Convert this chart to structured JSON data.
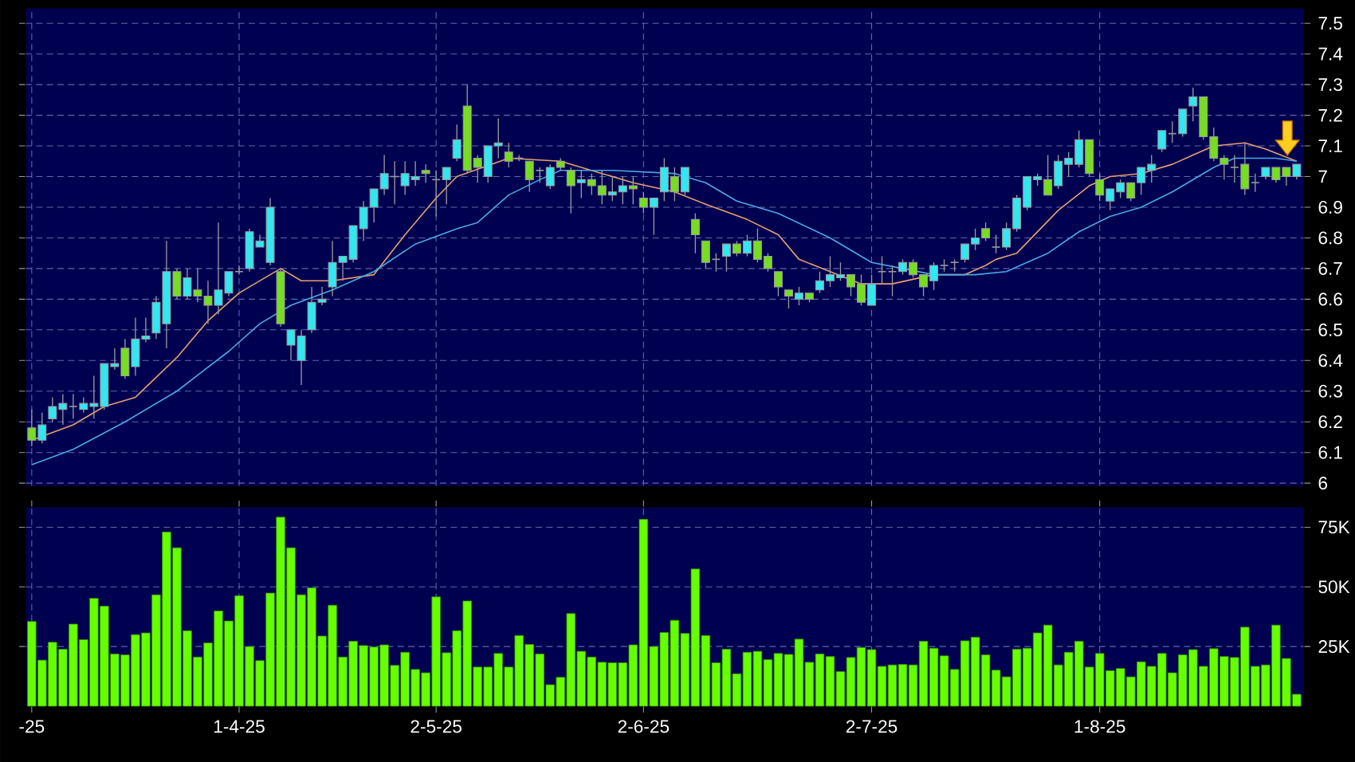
{
  "chart_data": [
    {
      "type": "candlestick",
      "ohlc": [
        [
          6.18,
          6.24,
          6.12,
          6.14
        ],
        [
          6.14,
          6.23,
          6.13,
          6.19
        ],
        [
          6.21,
          6.28,
          6.2,
          6.25
        ],
        [
          6.24,
          6.29,
          6.19,
          6.26
        ],
        [
          6.25,
          6.29,
          6.21,
          6.25
        ],
        [
          6.24,
          6.28,
          6.23,
          6.26
        ],
        [
          6.25,
          6.35,
          6.21,
          6.26
        ],
        [
          6.25,
          6.39,
          6.24,
          6.39
        ],
        [
          6.38,
          6.44,
          6.37,
          6.39
        ],
        [
          6.44,
          6.47,
          6.34,
          6.35
        ],
        [
          6.38,
          6.54,
          6.35,
          6.47
        ],
        [
          6.47,
          6.54,
          6.46,
          6.48
        ],
        [
          6.49,
          6.61,
          6.47,
          6.59
        ],
        [
          6.52,
          6.79,
          6.44,
          6.69
        ],
        [
          6.69,
          6.7,
          6.6,
          6.61
        ],
        [
          6.61,
          6.7,
          6.6,
          6.67
        ],
        [
          6.63,
          6.7,
          6.59,
          6.61
        ],
        [
          6.61,
          6.66,
          6.52,
          6.58
        ],
        [
          6.58,
          6.85,
          6.55,
          6.63
        ],
        [
          6.62,
          6.69,
          6.61,
          6.69
        ],
        [
          6.69,
          6.71,
          6.68,
          6.69
        ],
        [
          6.7,
          6.83,
          6.69,
          6.82
        ],
        [
          6.77,
          6.81,
          6.77,
          6.79
        ],
        [
          6.72,
          6.93,
          6.71,
          6.9
        ],
        [
          6.69,
          6.7,
          6.51,
          6.52
        ],
        [
          6.45,
          6.5,
          6.4,
          6.5
        ],
        [
          6.4,
          6.5,
          6.32,
          6.48
        ],
        [
          6.5,
          6.64,
          6.49,
          6.59
        ],
        [
          6.59,
          6.64,
          6.58,
          6.6
        ],
        [
          6.64,
          6.79,
          6.61,
          6.72
        ],
        [
          6.72,
          6.74,
          6.66,
          6.74
        ],
        [
          6.73,
          6.84,
          6.72,
          6.84
        ],
        [
          6.83,
          6.92,
          6.79,
          6.9
        ],
        [
          6.9,
          6.96,
          6.85,
          6.96
        ],
        [
          6.96,
          7.07,
          6.94,
          7.01
        ],
        [
          7.0,
          7.05,
          6.91,
          7.0
        ],
        [
          6.97,
          7.05,
          6.94,
          7.01
        ],
        [
          6.99,
          7.05,
          6.97,
          7.0
        ],
        [
          7.02,
          7.04,
          6.98,
          7.01
        ],
        [
          6.99,
          7.02,
          6.87,
          6.99
        ],
        [
          6.99,
          7.03,
          6.91,
          7.03
        ],
        [
          7.06,
          7.17,
          7.05,
          7.12
        ],
        [
          7.23,
          7.3,
          7.01,
          7.02
        ],
        [
          7.06,
          7.07,
          6.98,
          7.03
        ],
        [
          7.0,
          7.1,
          6.98,
          7.1
        ],
        [
          7.1,
          7.19,
          7.06,
          7.11
        ],
        [
          7.08,
          7.11,
          7.03,
          7.05
        ],
        [
          7.06,
          7.07,
          7.05,
          7.06
        ],
        [
          7.05,
          7.05,
          6.95,
          6.99
        ],
        [
          7.02,
          7.03,
          6.98,
          7.02
        ],
        [
          6.97,
          7.04,
          6.96,
          7.03
        ],
        [
          7.05,
          7.06,
          7.02,
          7.03
        ],
        [
          7.02,
          7.03,
          6.88,
          6.97
        ],
        [
          6.98,
          7.02,
          6.93,
          6.99
        ],
        [
          6.99,
          7.01,
          6.94,
          6.97
        ],
        [
          6.97,
          7.02,
          6.91,
          6.94
        ],
        [
          6.94,
          7.0,
          6.92,
          6.95
        ],
        [
          6.95,
          7.0,
          6.91,
          6.97
        ],
        [
          6.97,
          7.0,
          6.91,
          6.96
        ],
        [
          6.93,
          6.95,
          6.88,
          6.9
        ],
        [
          6.9,
          6.93,
          6.81,
          6.93
        ],
        [
          6.95,
          7.06,
          6.92,
          7.03
        ],
        [
          7.0,
          7.03,
          6.92,
          6.95
        ],
        [
          6.95,
          7.03,
          6.94,
          7.03
        ],
        [
          6.86,
          6.88,
          6.75,
          6.81
        ],
        [
          6.79,
          6.79,
          6.7,
          6.72
        ],
        [
          6.73,
          6.75,
          6.69,
          6.73
        ],
        [
          6.74,
          6.78,
          6.69,
          6.78
        ],
        [
          6.78,
          6.79,
          6.74,
          6.75
        ],
        [
          6.75,
          6.81,
          6.74,
          6.79
        ],
        [
          6.79,
          6.83,
          6.72,
          6.73
        ],
        [
          6.74,
          6.75,
          6.69,
          6.7
        ],
        [
          6.69,
          6.69,
          6.61,
          6.64
        ],
        [
          6.63,
          6.63,
          6.57,
          6.61
        ],
        [
          6.6,
          6.64,
          6.58,
          6.62
        ],
        [
          6.62,
          6.62,
          6.59,
          6.6
        ],
        [
          6.63,
          6.69,
          6.62,
          6.66
        ],
        [
          6.66,
          6.74,
          6.64,
          6.68
        ],
        [
          6.67,
          6.72,
          6.66,
          6.68
        ],
        [
          6.68,
          6.68,
          6.61,
          6.64
        ],
        [
          6.65,
          6.68,
          6.58,
          6.59
        ],
        [
          6.58,
          6.68,
          6.58,
          6.65
        ],
        [
          6.69,
          6.74,
          6.65,
          6.69
        ],
        [
          6.69,
          6.71,
          6.61,
          6.69
        ],
        [
          6.69,
          6.73,
          6.68,
          6.72
        ],
        [
          6.72,
          6.73,
          6.67,
          6.68
        ],
        [
          6.68,
          6.68,
          6.61,
          6.64
        ],
        [
          6.66,
          6.72,
          6.63,
          6.71
        ],
        [
          6.71,
          6.73,
          6.69,
          6.71
        ],
        [
          6.72,
          6.73,
          6.69,
          6.72
        ],
        [
          6.73,
          6.78,
          6.72,
          6.78
        ],
        [
          6.78,
          6.83,
          6.76,
          6.8
        ],
        [
          6.83,
          6.85,
          6.79,
          6.8
        ],
        [
          6.77,
          6.81,
          6.75,
          6.77
        ],
        [
          6.77,
          6.85,
          6.76,
          6.83
        ],
        [
          6.83,
          6.94,
          6.82,
          6.93
        ],
        [
          6.9,
          7.0,
          6.89,
          7.0
        ],
        [
          6.99,
          7.01,
          6.97,
          7.0
        ],
        [
          6.99,
          7.07,
          6.94,
          6.94
        ],
        [
          6.97,
          7.07,
          6.96,
          7.05
        ],
        [
          7.04,
          7.08,
          7.0,
          7.06
        ],
        [
          7.04,
          7.15,
          7.03,
          7.12
        ],
        [
          7.12,
          7.12,
          7.0,
          7.01
        ],
        [
          6.99,
          7.01,
          6.92,
          6.94
        ],
        [
          6.92,
          6.96,
          6.89,
          6.96
        ],
        [
          6.95,
          6.99,
          6.93,
          6.98
        ],
        [
          6.98,
          6.98,
          6.92,
          6.93
        ],
        [
          6.98,
          7.03,
          6.94,
          7.03
        ],
        [
          7.02,
          7.07,
          6.98,
          7.04
        ],
        [
          7.09,
          7.15,
          7.08,
          7.15
        ],
        [
          7.14,
          7.18,
          7.11,
          7.14
        ],
        [
          7.14,
          7.22,
          7.13,
          7.22
        ],
        [
          7.23,
          7.29,
          7.18,
          7.26
        ],
        [
          7.26,
          7.26,
          7.12,
          7.13
        ],
        [
          7.13,
          7.16,
          7.05,
          7.06
        ],
        [
          7.06,
          7.07,
          6.99,
          7.04
        ],
        [
          7.03,
          7.07,
          6.98,
          7.03
        ],
        [
          7.04,
          7.11,
          6.94,
          6.96
        ],
        [
          6.98,
          7.01,
          6.95,
          6.98
        ],
        [
          7.0,
          7.03,
          6.99,
          7.03
        ],
        [
          7.03,
          7.03,
          6.98,
          6.99
        ],
        [
          7.03,
          7.03,
          6.97,
          7.0
        ],
        [
          7.0,
          7.04,
          6.99,
          7.04
        ]
      ],
      "categories": [
        null,
        null,
        null,
        null,
        null,
        null,
        null,
        null,
        null,
        null,
        null,
        null,
        null,
        null,
        null,
        null,
        null,
        null,
        null,
        null,
        null,
        null,
        null,
        null,
        null,
        null,
        null,
        null,
        null,
        null,
        null,
        null,
        null,
        null,
        null,
        null,
        null,
        null,
        null,
        null,
        null,
        null,
        null,
        null,
        null,
        null,
        null,
        null,
        null,
        null,
        null,
        null,
        null,
        null,
        null,
        null,
        null,
        null,
        null,
        null,
        null,
        null,
        null,
        null,
        null,
        null,
        null,
        null,
        null,
        null,
        null,
        null,
        null,
        null,
        null,
        null,
        null,
        null,
        null,
        null,
        null,
        null,
        null,
        null,
        null,
        null,
        null,
        null,
        null,
        null,
        null,
        null,
        null,
        null,
        null,
        null,
        null,
        null,
        null,
        null,
        null,
        null,
        null,
        null,
        null,
        null,
        null,
        null,
        null,
        null,
        null,
        null,
        null,
        null,
        null,
        null,
        null,
        null,
        null,
        null,
        null,
        null,
        null
      ],
      "colors": [
        "#77dd22",
        "#33e6f0",
        "#33e6f0",
        "#33e6f0",
        "#9a9a9a",
        "#33e6f0",
        "#33e6f0",
        "#33e6f0",
        "#33e6f0",
        "#77dd22",
        "#33e6f0",
        "#33e6f0",
        "#33e6f0",
        "#33e6f0",
        "#77dd22",
        "#33e6f0",
        "#77dd22",
        "#77dd22",
        "#33e6f0",
        "#33e6f0",
        "#9a9a9a",
        "#33e6f0",
        "#33e6f0",
        "#33e6f0",
        "#77dd22",
        "#33e6f0",
        "#33e6f0",
        "#33e6f0",
        "#33e6f0",
        "#33e6f0",
        "#33e6f0",
        "#33e6f0",
        "#33e6f0",
        "#33e6f0",
        "#33e6f0",
        "#9a9a9a",
        "#33e6f0",
        "#33e6f0",
        "#77dd22",
        "#9a9a9a",
        "#33e6f0",
        "#33e6f0",
        "#77dd22",
        "#77dd22",
        "#33e6f0",
        "#33e6f0",
        "#77dd22",
        "#9a9a9a",
        "#77dd22",
        "#9a9a9a",
        "#33e6f0",
        "#77dd22",
        "#77dd22",
        "#33e6f0",
        "#77dd22",
        "#77dd22",
        "#33e6f0",
        "#33e6f0",
        "#77dd22",
        "#77dd22",
        "#33e6f0",
        "#33e6f0",
        "#77dd22",
        "#33e6f0",
        "#77dd22",
        "#77dd22",
        "#9a9a9a",
        "#33e6f0",
        "#77dd22",
        "#33e6f0",
        "#77dd22",
        "#77dd22",
        "#77dd22",
        "#77dd22",
        "#33e6f0",
        "#77dd22",
        "#33e6f0",
        "#33e6f0",
        "#33e6f0",
        "#77dd22",
        "#77dd22",
        "#33e6f0",
        "#9a9a9a",
        "#9a9a9a",
        "#33e6f0",
        "#77dd22",
        "#77dd22",
        "#33e6f0",
        "#9a9a9a",
        "#9a9a9a",
        "#33e6f0",
        "#33e6f0",
        "#77dd22",
        "#9a9a9a",
        "#33e6f0",
        "#33e6f0",
        "#33e6f0",
        "#33e6f0",
        "#77dd22",
        "#33e6f0",
        "#33e6f0",
        "#33e6f0",
        "#77dd22",
        "#77dd22",
        "#33e6f0",
        "#33e6f0",
        "#77dd22",
        "#33e6f0",
        "#33e6f0",
        "#33e6f0",
        "#9a9a9a",
        "#33e6f0",
        "#33e6f0",
        "#77dd22",
        "#77dd22",
        "#77dd22",
        "#9a9a9a",
        "#77dd22",
        "#9a9a9a",
        "#33e6f0",
        "#77dd22",
        "#77dd22",
        "#33e6f0"
      ],
      "series": [
        {
          "type": "line",
          "color": "#e8a070",
          "values": [
            6.14,
            null,
            null,
            null,
            6.19,
            null,
            null,
            6.25,
            null,
            null,
            6.28,
            null,
            null,
            null,
            6.41,
            null,
            null,
            6.53,
            null,
            null,
            6.62,
            null,
            null,
            null,
            6.7,
            null,
            6.66,
            null,
            null,
            6.66,
            null,
            null,
            null,
            6.68,
            null,
            null,
            6.81,
            null,
            null,
            6.93,
            null,
            7.0,
            null,
            null,
            null,
            null,
            7.06,
            null,
            null,
            null,
            null,
            7.05,
            null,
            null,
            null,
            7.01,
            null,
            null,
            6.98,
            null,
            null,
            null,
            6.95,
            null,
            null,
            6.91,
            null,
            null,
            null,
            6.86,
            null,
            null,
            6.81,
            null,
            6.73,
            null,
            null,
            6.69,
            null,
            null,
            6.65,
            null,
            null,
            6.65,
            null,
            null,
            null,
            6.68,
            null,
            null,
            6.68,
            null,
            6.71,
            6.73,
            null,
            6.75,
            null,
            6.82,
            null,
            6.89,
            null,
            null,
            6.97,
            null,
            7.0,
            null,
            null,
            7.01,
            null,
            null,
            7.04,
            null,
            7.07,
            null,
            7.1,
            null,
            null,
            7.11,
            null,
            7.09,
            null,
            null,
            7.05
          ]
        },
        {
          "type": "line",
          "color": "#4aa8e8",
          "values": [
            6.06,
            null,
            null,
            null,
            6.11,
            null,
            null,
            null,
            null,
            6.2,
            null,
            null,
            null,
            null,
            6.3,
            null,
            null,
            null,
            null,
            6.43,
            null,
            null,
            6.52,
            null,
            null,
            6.58,
            null,
            null,
            null,
            6.63,
            null,
            null,
            null,
            6.69,
            null,
            null,
            null,
            6.78,
            null,
            null,
            null,
            6.83,
            null,
            6.85,
            null,
            null,
            6.94,
            null,
            null,
            6.99,
            null,
            7.02,
            null,
            null,
            null,
            null,
            7.02,
            null,
            null,
            null,
            null,
            null,
            7.01,
            null,
            null,
            6.98,
            null,
            null,
            6.92,
            null,
            null,
            null,
            6.88,
            null,
            null,
            null,
            null,
            6.8,
            null,
            null,
            null,
            6.72,
            null,
            null,
            6.7,
            null,
            null,
            6.68,
            null,
            null,
            null,
            6.68,
            null,
            null,
            6.69,
            null,
            null,
            null,
            6.75,
            null,
            null,
            6.82,
            null,
            null,
            6.87,
            null,
            null,
            6.9,
            null,
            null,
            6.95,
            null,
            null,
            null,
            7.03,
            null,
            7.06,
            null,
            null,
            null,
            7.06,
            null,
            7.05
          ]
        }
      ],
      "ylim": [
        5.99,
        7.55
      ],
      "yticks": [
        6,
        6.1,
        6.2,
        6.3,
        6.4,
        6.5,
        6.6,
        6.7,
        6.8,
        6.9,
        7,
        7.1,
        7.2,
        7.3,
        7.4,
        7.5
      ],
      "grid": true
    },
    {
      "type": "bar",
      "color": "#66ff00",
      "categories": [
        "-25",
        null,
        null,
        null,
        null,
        null,
        null,
        null,
        null,
        null,
        null,
        null,
        null,
        null,
        null,
        null,
        null,
        null,
        null,
        null,
        "1-4-25",
        null,
        null,
        null,
        null,
        null,
        null,
        null,
        null,
        null,
        null,
        null,
        null,
        null,
        null,
        null,
        null,
        null,
        null,
        "2-5-25",
        null,
        null,
        null,
        null,
        null,
        null,
        null,
        null,
        null,
        null,
        null,
        null,
        null,
        null,
        null,
        null,
        null,
        null,
        null,
        "2-6-25",
        null,
        null,
        null,
        null,
        null,
        null,
        null,
        null,
        null,
        null,
        null,
        null,
        null,
        null,
        null,
        null,
        null,
        null,
        null,
        null,
        null,
        "2-7-25",
        null,
        null,
        null,
        null,
        null,
        null,
        null,
        null,
        null,
        null,
        null,
        null,
        null,
        null,
        null,
        null,
        null,
        null,
        null,
        null,
        null,
        "1-8-25",
        null,
        null,
        null,
        null,
        null,
        null,
        null,
        null,
        null,
        null,
        null,
        null,
        null,
        null,
        null,
        null,
        null,
        null,
        null
      ],
      "values": [
        35.5,
        19.3,
        26.8,
        23.9,
        34.4,
        27.9,
        45.2,
        41.9,
        21.9,
        21.5,
        30.0,
        30.7,
        46.7,
        73.0,
        66.4,
        31.6,
        20.6,
        26.5,
        39.9,
        35.7,
        46.3,
        25.0,
        19.1,
        47.4,
        79.2,
        66.4,
        46.7,
        49.6,
        29.4,
        42.3,
        20.6,
        27.2,
        25.4,
        24.8,
        25.7,
        17.1,
        22.6,
        15.4,
        14.0,
        45.8,
        22.4,
        31.6,
        44.1,
        16.4,
        16.4,
        22.1,
        16.4,
        29.6,
        25.9,
        21.9,
        9.0,
        12.1,
        38.8,
        23.0,
        20.6,
        18.4,
        18.2,
        18.2,
        25.7,
        78.3,
        25.0,
        30.9,
        36.0,
        30.5,
        57.5,
        29.6,
        18.2,
        23.9,
        13.6,
        22.6,
        23.0,
        19.5,
        22.1,
        21.7,
        28.1,
        18.4,
        21.9,
        20.8,
        14.5,
        20.4,
        24.6,
        23.7,
        16.7,
        17.3,
        17.5,
        17.3,
        27.2,
        24.3,
        21.1,
        15.4,
        27.4,
        28.9,
        21.5,
        15.1,
        12.3,
        23.9,
        24.3,
        30.7,
        34.0,
        17.3,
        22.6,
        27.2,
        16.4,
        22.1,
        14.9,
        15.8,
        12.3,
        18.6,
        16.7,
        22.1,
        14.0,
        21.5,
        23.7,
        16.7,
        24.1,
        20.8,
        20.4,
        33.1,
        16.7,
        17.3,
        34.0,
        20.0,
        5.0
      ],
      "ylim": [
        0,
        83.5
      ],
      "yticks": [
        {
          "value": 25,
          "label": "25K"
        },
        {
          "value": 50,
          "label": "50K"
        },
        {
          "value": 75,
          "label": "75K"
        }
      ],
      "grid": true
    }
  ]
}
